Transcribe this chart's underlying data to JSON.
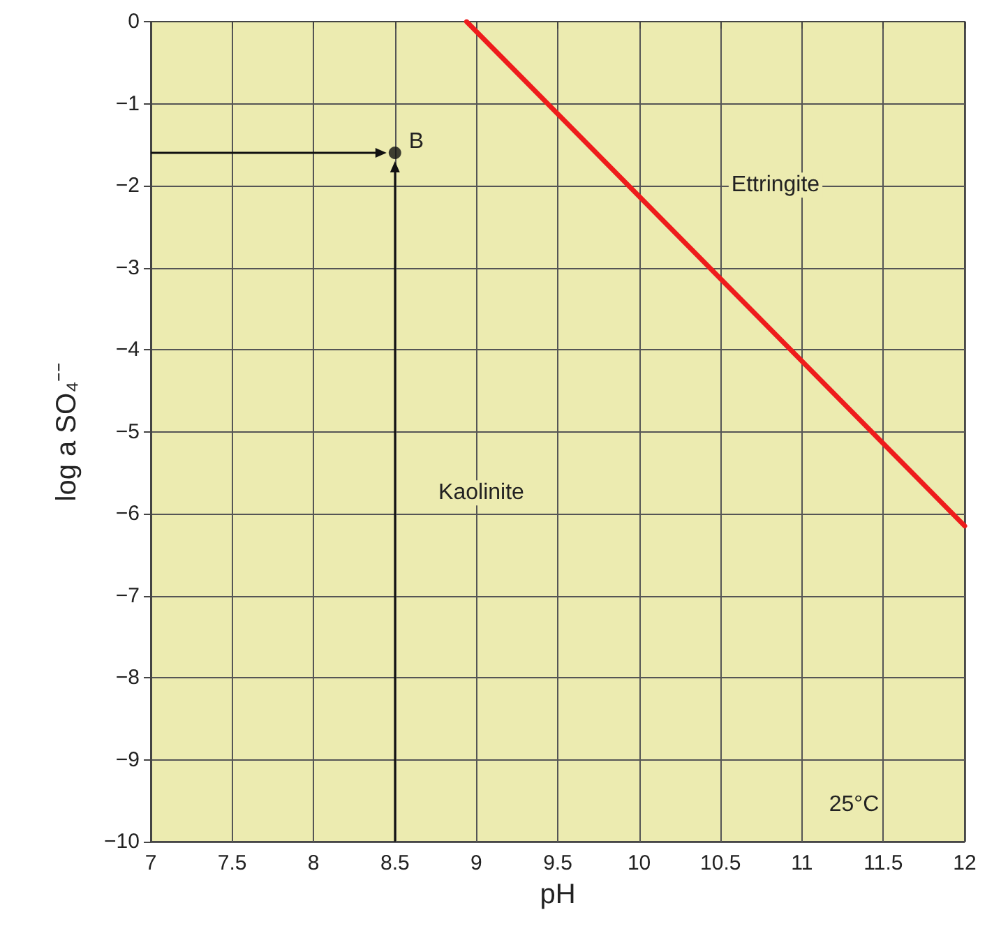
{
  "chart_data": {
    "type": "line",
    "xlabel": "pH",
    "ylabel": "log a SO₄⁻⁻",
    "series": [
      {
        "color": "#ee1c1c",
        "x": [
          8.94,
          12
        ],
        "values": [
          0,
          -6.15
        ],
        "marker": "none"
      },
      {
        "type": "scatter",
        "color": "#111111",
        "x": [
          8.5
        ],
        "values": [
          -1.6
        ],
        "marker": "circle"
      }
    ],
    "xlim": [
      7,
      12
    ],
    "xticks": [
      7,
      7.5,
      8,
      8.5,
      9,
      9.5,
      10,
      10.5,
      11,
      11.5,
      12
    ],
    "ylim": [
      -10,
      0
    ],
    "yticks": [
      -10,
      -9,
      -8,
      -7,
      -6,
      -5,
      -4,
      -3,
      -2,
      -1,
      0
    ],
    "grid": true,
    "annotations": [
      {
        "text": "B",
        "x": 8.5,
        "y": -1.6
      },
      "Ettringite",
      "Kaolinite",
      "25°C"
    ]
  }
}
